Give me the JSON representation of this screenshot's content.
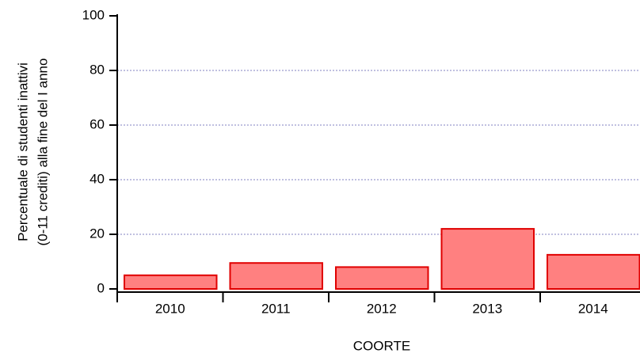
{
  "chart_data": {
    "type": "bar",
    "categories": [
      "2010",
      "2011",
      "2012",
      "2013",
      "2014"
    ],
    "values": [
      5,
      9.5,
      8,
      22,
      12.5
    ],
    "color": "#ff8080",
    "edge_color": "#e00000",
    "xlabel": "COORTE",
    "ylabel": [
      "Percentuale di studenti inattivi",
      "(0-11 crediti) alla fine del I anno"
    ],
    "ylim": [
      0,
      100
    ],
    "yticks": [
      0,
      20,
      40,
      60,
      80,
      100
    ],
    "grid": true
  }
}
